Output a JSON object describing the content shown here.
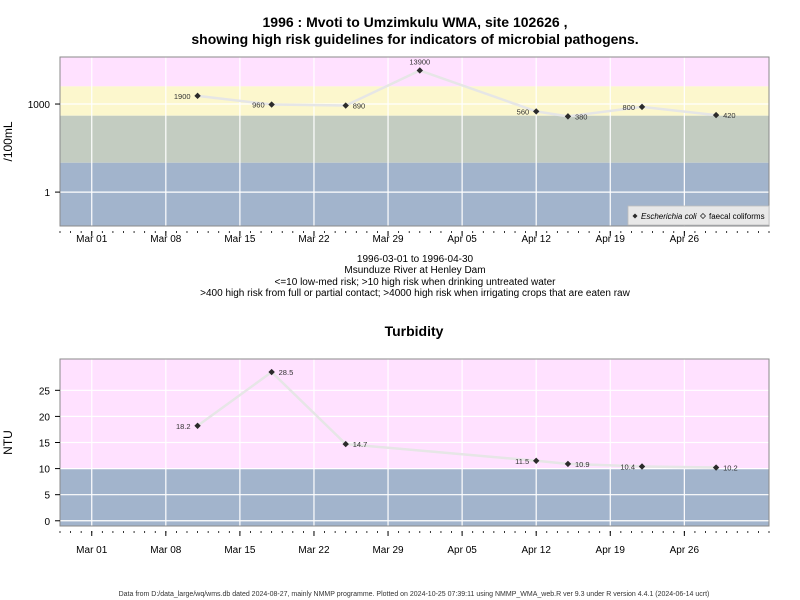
{
  "colors": {
    "pink": "#ffe1ff",
    "yellow": "#fcf7cd",
    "greygreen": "#c3ccc1",
    "blue": "#a2b4cc",
    "line": "#e6e6e6",
    "grid": "#ffffff",
    "point": "#2b2b2b",
    "frame": "#8a8a8a"
  },
  "chart_data": [
    {
      "type": "line",
      "title_line1": "1996 : Mvoti to Umzimkulu WMA, site 102626 ,",
      "title_line2": "showing high risk guidelines for indicators of microbial pathogens.",
      "ylabel": "/100mL",
      "yscale": "log",
      "yticks": [
        1,
        1000
      ],
      "x_tick_labels": [
        "Mar 01",
        "Mar 08",
        "Mar 15",
        "Mar 22",
        "Mar 29",
        "Apr 05",
        "Apr 12",
        "Apr 19",
        "Apr 26"
      ],
      "x_tick_dates": [
        "1996-03-01",
        "1996-03-08",
        "1996-03-15",
        "1996-03-22",
        "1996-03-29",
        "1996-04-05",
        "1996-04-12",
        "1996-04-19",
        "1996-04-26"
      ],
      "xlim": [
        "1996-02-27",
        "1996-05-04"
      ],
      "bands": [
        {
          "from": 4000,
          "to": 40000,
          "color": "pink"
        },
        {
          "from": 400,
          "to": 4000,
          "color": "yellow"
        },
        {
          "from": 10,
          "to": 400,
          "color": "greygreen"
        },
        {
          "from": 0.07,
          "to": 10,
          "color": "blue"
        }
      ],
      "series": [
        {
          "name": "Escherichia coli",
          "x": [
            "1996-03-11",
            "1996-03-18",
            "1996-03-25",
            "1996-04-01",
            "1996-04-12",
            "1996-04-15",
            "1996-04-22",
            "1996-04-29"
          ],
          "y": [
            1900,
            960,
            890,
            13900,
            560,
            380,
            800,
            420
          ],
          "labels": [
            "1900",
            "960",
            "890",
            "13900",
            "560",
            "380",
            "800",
            "420"
          ]
        }
      ],
      "legend": [
        "Escherichia coli",
        "faecal coliforms"
      ],
      "legend_position": "bottom-right",
      "subtitle_lines": [
        "1996-03-01 to 1996-04-30",
        "Msunduze River at Henley Dam",
        "<=10 low-med risk; >10 high risk when drinking untreated water",
        ">400 high risk from full or partial contact; >4000 high risk when irrigating crops that are eaten raw"
      ]
    },
    {
      "type": "line",
      "title": "Turbidity",
      "ylabel": "NTU",
      "yticks": [
        0,
        5,
        10,
        15,
        20,
        25
      ],
      "x_tick_labels": [
        "Mar 01",
        "Mar 08",
        "Mar 15",
        "Mar 22",
        "Mar 29",
        "Apr 05",
        "Apr 12",
        "Apr 19",
        "Apr 26"
      ],
      "x_tick_dates": [
        "1996-03-01",
        "1996-03-08",
        "1996-03-15",
        "1996-03-22",
        "1996-03-29",
        "1996-04-05",
        "1996-04-12",
        "1996-04-19",
        "1996-04-26"
      ],
      "xlim": [
        "1996-02-27",
        "1996-05-04"
      ],
      "bands": [
        {
          "from": 10,
          "to": 31,
          "color": "pink"
        },
        {
          "from": -1,
          "to": 10,
          "color": "blue"
        }
      ],
      "series": [
        {
          "x": [
            "1996-03-11",
            "1996-03-18",
            "1996-03-25",
            "1996-04-12",
            "1996-04-15",
            "1996-04-22",
            "1996-04-29"
          ],
          "y": [
            18.2,
            28.5,
            14.7,
            11.5,
            10.9,
            10.4,
            10.2
          ],
          "labels": [
            "18.2",
            "28.5",
            "14.7",
            "11.5",
            "10.9",
            "10.4",
            "10.2"
          ]
        }
      ]
    }
  ],
  "footer": "Data from D:/data_large/wq/wms.db dated 2024-08-27, mainly NMMP programme. Plotted on 2024-10-25 07:39:11 using NMMP_WMA_web.R ver 9.3 under R version 4.4.1 (2024-06-14 ucrt)"
}
